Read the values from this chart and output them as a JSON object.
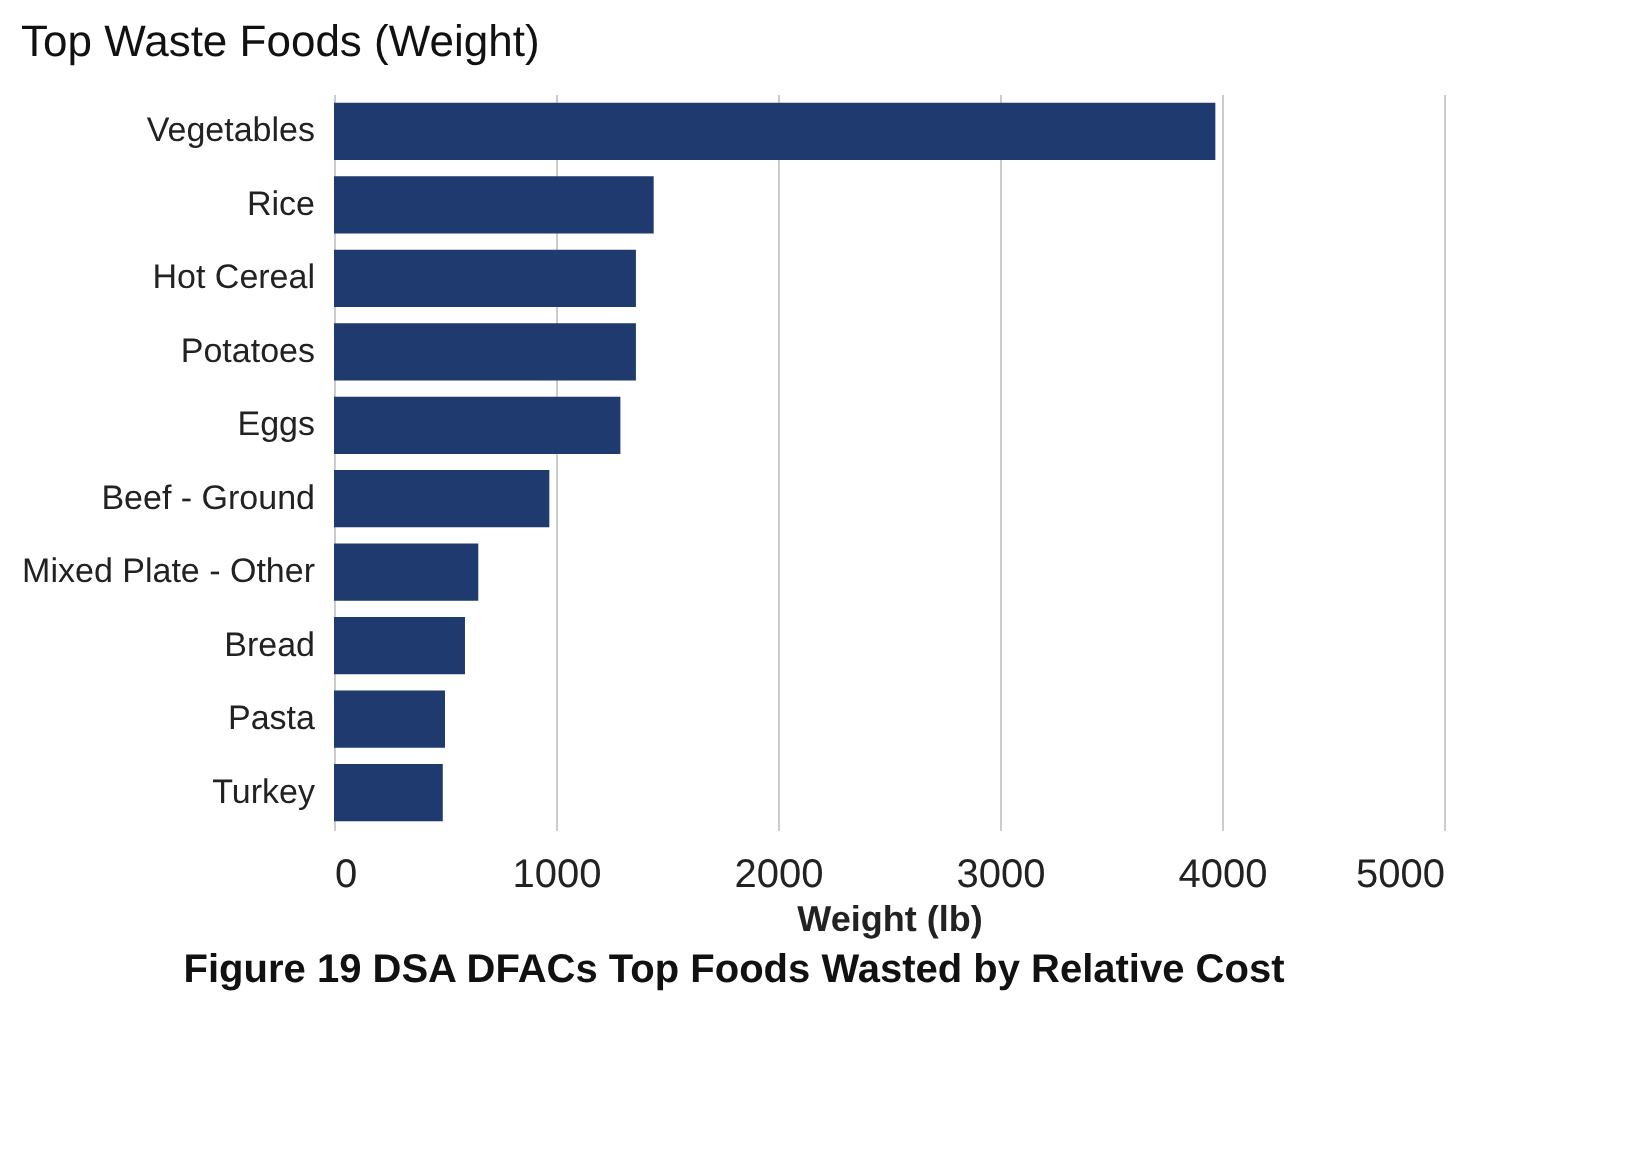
{
  "chart_data": {
    "type": "bar",
    "orientation": "horizontal",
    "title": "Top Waste Foods (Weight)",
    "xlabel": "Weight (lb)",
    "categories": [
      "Vegetables",
      "Rice",
      "Hot Cereal",
      "Potatoes",
      "Eggs",
      "Beef - Ground",
      "Mixed Plate - Other",
      "Bread",
      "Pasta",
      "Turkey"
    ],
    "values": [
      3970,
      1440,
      1360,
      1360,
      1290,
      970,
      650,
      590,
      500,
      490
    ],
    "color": "#1f3a6e",
    "xlim": [
      0,
      5000
    ],
    "xticks": [
      0,
      1000,
      2000,
      3000,
      4000,
      5000
    ],
    "grid": "x",
    "annotations": [
      "Figure 19  DSA DFACs Top Foods Wasted by Relative Cost"
    ]
  }
}
